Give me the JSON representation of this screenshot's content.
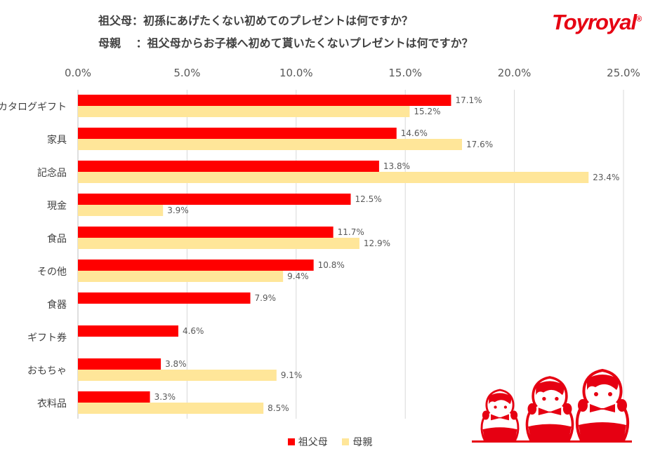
{
  "titles": [
    "祖父母：初孫にあげたくない初めてのプレゼントは何ですか？",
    "母親　 ：祖父母からお子様へ初めて貰いたくないプレゼントは何ですか？"
  ],
  "logo": "Toyroyal",
  "chart_data": {
    "type": "bar",
    "orientation": "horizontal",
    "categories": [
      "カタログギフト",
      "家具",
      "記念品",
      "現金",
      "食品",
      "その他",
      "食器",
      "ギフト券",
      "おもちゃ",
      "衣料品"
    ],
    "series": [
      {
        "name": "祖父母",
        "color": "#ff0000",
        "values": [
          17.1,
          14.6,
          13.8,
          12.5,
          11.7,
          10.8,
          7.9,
          4.6,
          3.8,
          3.3
        ]
      },
      {
        "name": "母親",
        "color": "#ffe699",
        "values": [
          15.2,
          17.6,
          23.4,
          3.9,
          12.9,
          9.4,
          null,
          null,
          9.1,
          8.5
        ]
      }
    ],
    "xlim": [
      0,
      25
    ],
    "xticks": [
      0,
      5,
      10,
      15,
      20,
      25
    ],
    "tick_labels": [
      "0.0%",
      "5.0%",
      "10.0%",
      "15.0%",
      "20.0%",
      "25.0%"
    ],
    "axis_position": "top",
    "grid": true,
    "legend": "bottom",
    "data_labels": true
  }
}
